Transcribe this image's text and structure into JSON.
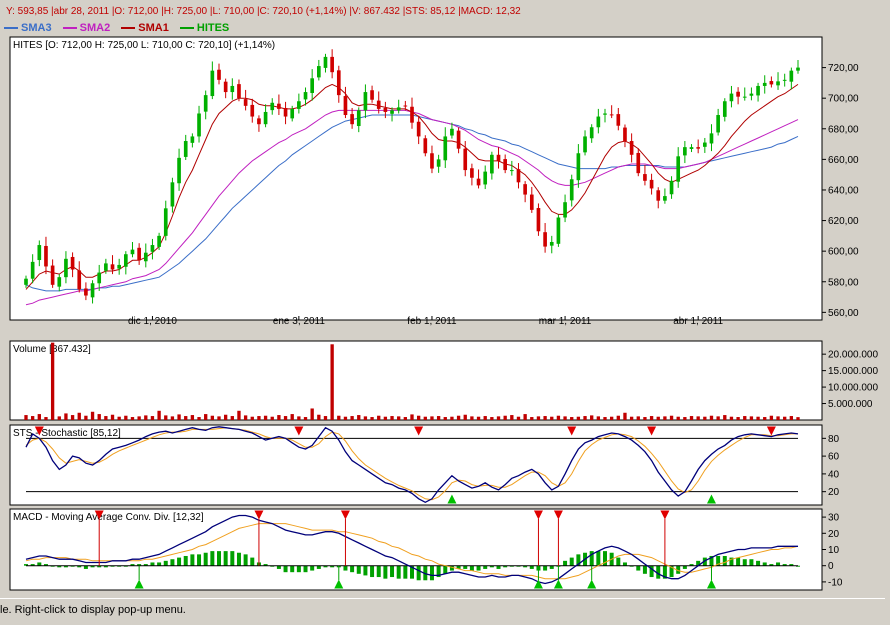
{
  "info_line": "Y: 593,85 |abr 28, 2011 |O: 712,00 |H: 725,00 |L: 710,00 |C: 720,10 (+1,14%) |V: 867.432 |STS: 85,12 |MACD: 12,32",
  "legend": [
    {
      "name": "SMA3",
      "color": "#3a6ec8"
    },
    {
      "name": "SMA2",
      "color": "#c020c0"
    },
    {
      "name": "SMA1",
      "color": "#b00000"
    },
    {
      "name": "HITES",
      "color": "#00a000"
    }
  ],
  "status_text": "le. Right-click to display pop-up menu.",
  "chart_data": [
    {
      "type": "candlestick",
      "title": "HITES [O: 712,00  H: 725,00  L: 710,00  C: 720,10] (+1,14%)",
      "ylim": [
        555,
        740
      ],
      "yticks": [
        560,
        580,
        600,
        620,
        640,
        660,
        680,
        700,
        720
      ],
      "ytick_labels": [
        "560,00",
        "580,00",
        "600,00",
        "620,00",
        "640,00",
        "660,00",
        "680,00",
        "700,00",
        "720,00"
      ],
      "xtick_labels": [
        "dic 1, 2010",
        "ene 3, 2011",
        "feb 1, 2011",
        "mar 1, 2011",
        "abr 1, 2011"
      ],
      "xtick_index": [
        19,
        41,
        61,
        81,
        101
      ],
      "closes": [
        582,
        593,
        604,
        590,
        578,
        583,
        595,
        588,
        575,
        571,
        579,
        586,
        592,
        588,
        591,
        598,
        601,
        594,
        599,
        604,
        610,
        628,
        645,
        661,
        672,
        675,
        690,
        702,
        718,
        712,
        704,
        708,
        700,
        695,
        688,
        683,
        691,
        697,
        693,
        688,
        693,
        698,
        704,
        713,
        721,
        727,
        717,
        702,
        689,
        683,
        692,
        704,
        699,
        693,
        691,
        692,
        694,
        695,
        684,
        675,
        664,
        654,
        660,
        675,
        680,
        667,
        653,
        648,
        643,
        652,
        663,
        659,
        653,
        653,
        645,
        637,
        627,
        613,
        603,
        606,
        622,
        632,
        647,
        664,
        675,
        681,
        688,
        690,
        689,
        682,
        672,
        663,
        651,
        646,
        641,
        633,
        636,
        646,
        662,
        668,
        668,
        667,
        671,
        677,
        689,
        698,
        703,
        701,
        701,
        703,
        708,
        710,
        709,
        711,
        712,
        718,
        720
      ],
      "sma1": [
        575,
        580,
        585,
        587,
        586,
        585,
        588,
        590,
        587,
        583,
        583,
        585,
        587,
        587,
        588,
        591,
        594,
        594,
        596,
        599,
        603,
        612,
        623,
        635,
        645,
        653,
        663,
        673,
        683,
        690,
        694,
        698,
        700,
        700,
        699,
        696,
        695,
        695,
        694,
        693,
        693,
        694,
        696,
        699,
        703,
        707,
        709,
        707,
        703,
        697,
        695,
        696,
        696,
        695,
        694,
        693,
        693,
        693,
        691,
        688,
        683,
        677,
        673,
        672,
        672,
        671,
        668,
        664,
        660,
        659,
        659,
        659,
        657,
        656,
        653,
        650,
        645,
        639,
        632,
        626,
        624,
        624,
        627,
        632,
        638,
        646,
        654,
        662,
        668,
        671,
        672,
        670,
        667,
        662,
        657,
        651,
        647,
        645,
        647,
        649,
        651,
        653,
        656,
        660,
        664,
        669,
        675,
        680,
        685,
        689,
        692,
        695,
        698,
        701,
        703,
        706,
        709
      ],
      "sma2": [
        565,
        566,
        568,
        569,
        570,
        571,
        572,
        573,
        574,
        574,
        575,
        576,
        577,
        578,
        579,
        580,
        582,
        583,
        584,
        586,
        588,
        592,
        597,
        602,
        607,
        612,
        618,
        624,
        630,
        636,
        641,
        646,
        651,
        655,
        659,
        662,
        665,
        668,
        671,
        673,
        676,
        678,
        680,
        683,
        686,
        689,
        691,
        692,
        692,
        692,
        692,
        692,
        692,
        692,
        692,
        692,
        692,
        692,
        691,
        690,
        688,
        686,
        685,
        684,
        683,
        681,
        679,
        676,
        673,
        671,
        669,
        668,
        666,
        664,
        662,
        659,
        656,
        653,
        649,
        646,
        644,
        643,
        643,
        644,
        645,
        647,
        649,
        651,
        653,
        655,
        656,
        657,
        657,
        657,
        656,
        655,
        654,
        654,
        654,
        655,
        656,
        657,
        658,
        660,
        662,
        664,
        666,
        668,
        670,
        672,
        674,
        676,
        678,
        680,
        682,
        684,
        686
      ],
      "sma3": [
        578,
        576,
        575,
        574,
        574,
        574,
        575,
        575,
        575,
        575,
        575,
        576,
        576,
        577,
        577,
        578,
        579,
        580,
        581,
        582,
        583,
        586,
        589,
        592,
        596,
        600,
        604,
        608,
        613,
        618,
        623,
        628,
        632,
        636,
        640,
        644,
        648,
        652,
        656,
        659,
        663,
        666,
        669,
        672,
        675,
        678,
        681,
        683,
        685,
        686,
        687,
        688,
        689,
        689,
        689,
        689,
        689,
        689,
        689,
        688,
        687,
        686,
        685,
        684,
        683,
        682,
        680,
        679,
        677,
        676,
        674,
        673,
        672,
        670,
        669,
        667,
        665,
        663,
        661,
        659,
        657,
        656,
        655,
        654,
        654,
        654,
        654,
        654,
        655,
        655,
        656,
        656,
        656,
        656,
        656,
        656,
        655,
        655,
        655,
        655,
        656,
        657,
        658,
        659,
        660,
        661,
        662,
        663,
        664,
        665,
        666,
        667,
        668,
        670,
        671,
        673,
        675
      ]
    },
    {
      "type": "bar",
      "title": "Volume [867.432]",
      "ylim": [
        0,
        24000000
      ],
      "yticks": [
        5000000,
        10000000,
        15000000,
        20000000
      ],
      "ytick_labels": [
        "5.000.000",
        "10.000.000",
        "15.000.000",
        "20.000.000"
      ],
      "values": [
        1500000,
        1200000,
        1800000,
        900000,
        23500000,
        1100000,
        2000000,
        1500000,
        2200000,
        1300000,
        2500000,
        1800000,
        1200000,
        1600000,
        1000000,
        1300000,
        900000,
        1100000,
        1400000,
        1200000,
        2800000,
        1400000,
        1100000,
        1700000,
        1200000,
        1500000,
        900000,
        1800000,
        1300000,
        1100000,
        1600000,
        1200000,
        2800000,
        1400000,
        1000000,
        1200000,
        1300000,
        1000000,
        1500000,
        1200000,
        1800000,
        1100000,
        900000,
        3500000,
        1600000,
        1200000,
        23000000,
        1300000,
        1000000,
        1200000,
        1500000,
        1100000,
        900000,
        1300000,
        1000000,
        1200000,
        1100000,
        900000,
        1700000,
        1300000,
        1000000,
        1100000,
        1200000,
        900000,
        1000000,
        1300000,
        1600000,
        1100000,
        1000000,
        1200000,
        900000,
        1100000,
        1300000,
        1500000,
        1000000,
        1800000,
        900000,
        1100000,
        1200000,
        1000000,
        1300000,
        1100000,
        900000,
        1000000,
        1200000,
        1400000,
        1100000,
        900000,
        1000000,
        1300000,
        2200000,
        1000000,
        1100000,
        900000,
        1200000,
        1000000,
        1100000,
        1300000,
        1000000,
        900000,
        1200000,
        1100000,
        1000000,
        1300000,
        1100000,
        1500000,
        1000000,
        900000,
        1200000,
        1100000,
        1000000,
        900000,
        1300000,
        1100000,
        1000000,
        1200000,
        867432
      ]
    },
    {
      "type": "line",
      "title": "STS - Stochastic [85,12]",
      "ylim": [
        5,
        95
      ],
      "yticks": [
        20,
        40,
        60,
        80
      ],
      "ytick_labels": [
        "20",
        "40",
        "60",
        "80"
      ],
      "reference_lines": [
        20,
        80
      ],
      "k": [
        70,
        85,
        80,
        70,
        55,
        45,
        50,
        60,
        58,
        52,
        50,
        55,
        62,
        68,
        70,
        72,
        75,
        78,
        82,
        85,
        87,
        88,
        86,
        88,
        90,
        92,
        90,
        89,
        92,
        93,
        92,
        91,
        90,
        88,
        86,
        82,
        78,
        80,
        82,
        80,
        75,
        70,
        68,
        72,
        82,
        92,
        88,
        78,
        65,
        55,
        50,
        45,
        40,
        35,
        30,
        28,
        24,
        22,
        18,
        12,
        8,
        12,
        22,
        30,
        38,
        32,
        28,
        24,
        26,
        30,
        25,
        22,
        28,
        35,
        38,
        42,
        45,
        40,
        30,
        22,
        26,
        40,
        55,
        68,
        75,
        78,
        82,
        84,
        86,
        85,
        82,
        78,
        72,
        65,
        55,
        42,
        32,
        22,
        15,
        20,
        32,
        45,
        55,
        62,
        68,
        72,
        78,
        82,
        84,
        85,
        84,
        83,
        82,
        84,
        85,
        86,
        85
      ],
      "d": [
        72,
        78,
        80,
        76,
        68,
        58,
        52,
        54,
        56,
        54,
        52,
        53,
        57,
        62,
        66,
        69,
        72,
        75,
        78,
        81,
        84,
        86,
        87,
        87,
        88,
        90,
        90,
        90,
        90,
        91,
        92,
        91,
        90,
        89,
        87,
        85,
        82,
        80,
        80,
        80,
        78,
        74,
        70,
        70,
        74,
        82,
        87,
        85,
        77,
        66,
        57,
        50,
        45,
        40,
        35,
        31,
        27,
        24,
        21,
        16,
        12,
        11,
        14,
        21,
        30,
        33,
        32,
        28,
        26,
        27,
        27,
        25,
        25,
        28,
        33,
        38,
        42,
        42,
        38,
        30,
        26,
        30,
        40,
        54,
        66,
        73,
        78,
        81,
        84,
        85,
        84,
        82,
        77,
        71,
        63,
        54,
        43,
        32,
        23,
        19,
        22,
        32,
        44,
        54,
        61,
        67,
        72,
        77,
        81,
        84,
        84,
        84,
        83,
        83,
        84,
        85,
        85
      ],
      "sell_signals": [
        2,
        41,
        59,
        82,
        94,
        112
      ],
      "buy_signals": [
        64,
        103
      ]
    },
    {
      "type": "line",
      "title": "MACD - Moving Average Conv. Div. [12,32]",
      "ylim": [
        -15,
        35
      ],
      "yticks": [
        -10,
        0,
        10,
        20,
        30
      ],
      "ytick_labels": [
        "-10",
        "0",
        "10",
        "20",
        "30"
      ],
      "macd": [
        4,
        5,
        6,
        6,
        5,
        4,
        4,
        4,
        3,
        2,
        2,
        2,
        2,
        3,
        3,
        3,
        4,
        4,
        5,
        6,
        7,
        9,
        11,
        13,
        15,
        17,
        19,
        21,
        24,
        26,
        28,
        30,
        31,
        31,
        30,
        28,
        27,
        26,
        24,
        22,
        21,
        20,
        19,
        19,
        20,
        21,
        21,
        20,
        18,
        16,
        14,
        12,
        10,
        8,
        6,
        5,
        3,
        1,
        -1,
        -3,
        -5,
        -6,
        -6,
        -5,
        -4,
        -4,
        -5,
        -6,
        -7,
        -7,
        -6,
        -7,
        -7,
        -6,
        -6,
        -7,
        -8,
        -10,
        -11,
        -10,
        -8,
        -5,
        -2,
        1,
        4,
        7,
        9,
        11,
        12,
        11,
        9,
        7,
        4,
        1,
        -2,
        -5,
        -7,
        -8,
        -8,
        -6,
        -3,
        0,
        3,
        5,
        7,
        8,
        9,
        10,
        10,
        11,
        11,
        11,
        11,
        12,
        12,
        12,
        12
      ],
      "signal": [
        3,
        4,
        4,
        5,
        5,
        5,
        5,
        4,
        4,
        4,
        3,
        3,
        3,
        3,
        3,
        3,
        3,
        3,
        4,
        4,
        5,
        6,
        7,
        8,
        9,
        10,
        12,
        13,
        15,
        17,
        19,
        21,
        23,
        24,
        25,
        26,
        26,
        26,
        26,
        26,
        25,
        24,
        23,
        22,
        22,
        22,
        22,
        21,
        21,
        20,
        19,
        18,
        17,
        15,
        14,
        12,
        11,
        9,
        7,
        6,
        4,
        3,
        1,
        0,
        -1,
        -2,
        -3,
        -3,
        -4,
        -5,
        -5,
        -5,
        -6,
        -6,
        -6,
        -6,
        -6,
        -7,
        -8,
        -8,
        -8,
        -8,
        -7,
        -6,
        -4,
        -2,
        0,
        2,
        4,
        6,
        7,
        7,
        7,
        6,
        5,
        3,
        1,
        -1,
        -3,
        -4,
        -4,
        -3,
        -2,
        -1,
        1,
        2,
        4,
        5,
        6,
        7,
        8,
        9,
        10,
        10,
        11,
        11,
        12
      ],
      "sell_signals": [
        11,
        35,
        48,
        77,
        80,
        96
      ],
      "buy_signals": [
        17,
        47,
        77,
        80,
        85,
        103
      ]
    }
  ]
}
